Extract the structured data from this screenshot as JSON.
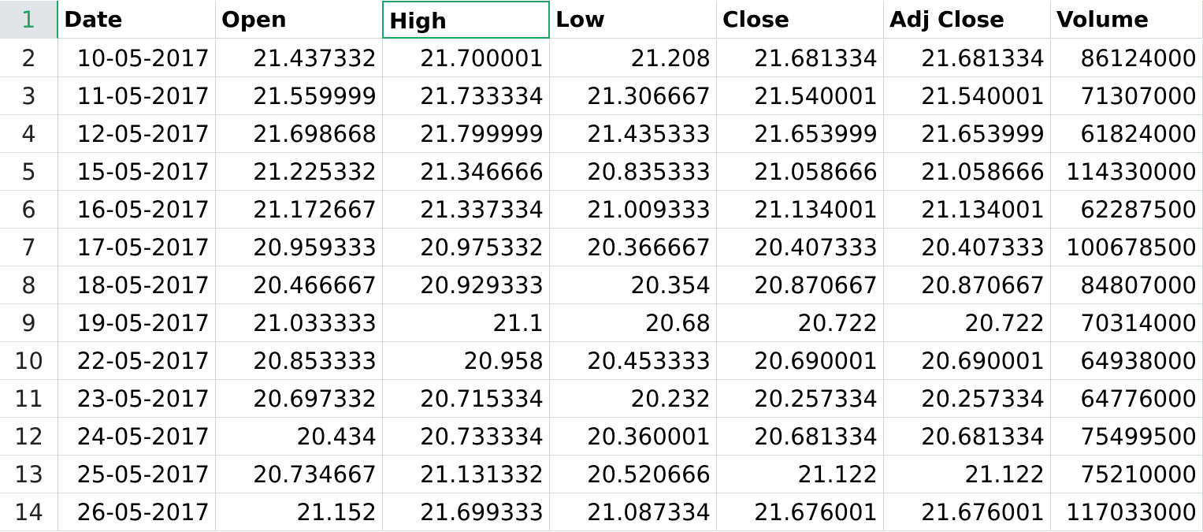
{
  "sheet": {
    "active_row": "1",
    "selected_cell": "High",
    "accent_color": "#21a366",
    "headers": [
      "Date",
      "Open",
      "High",
      "Low",
      "Close",
      "Adj Close",
      "Volume"
    ],
    "rows": [
      {
        "num": "2",
        "cells": [
          "10-05-2017",
          "21.437332",
          "21.700001",
          "21.208",
          "21.681334",
          "21.681334",
          "86124000"
        ]
      },
      {
        "num": "3",
        "cells": [
          "11-05-2017",
          "21.559999",
          "21.733334",
          "21.306667",
          "21.540001",
          "21.540001",
          "71307000"
        ]
      },
      {
        "num": "4",
        "cells": [
          "12-05-2017",
          "21.698668",
          "21.799999",
          "21.435333",
          "21.653999",
          "21.653999",
          "61824000"
        ]
      },
      {
        "num": "5",
        "cells": [
          "15-05-2017",
          "21.225332",
          "21.346666",
          "20.835333",
          "21.058666",
          "21.058666",
          "114330000"
        ]
      },
      {
        "num": "6",
        "cells": [
          "16-05-2017",
          "21.172667",
          "21.337334",
          "21.009333",
          "21.134001",
          "21.134001",
          "62287500"
        ]
      },
      {
        "num": "7",
        "cells": [
          "17-05-2017",
          "20.959333",
          "20.975332",
          "20.366667",
          "20.407333",
          "20.407333",
          "100678500"
        ]
      },
      {
        "num": "8",
        "cells": [
          "18-05-2017",
          "20.466667",
          "20.929333",
          "20.354",
          "20.870667",
          "20.870667",
          "84807000"
        ]
      },
      {
        "num": "9",
        "cells": [
          "19-05-2017",
          "21.033333",
          "21.1",
          "20.68",
          "20.722",
          "20.722",
          "70314000"
        ]
      },
      {
        "num": "10",
        "cells": [
          "22-05-2017",
          "20.853333",
          "20.958",
          "20.453333",
          "20.690001",
          "20.690001",
          "64938000"
        ]
      },
      {
        "num": "11",
        "cells": [
          "23-05-2017",
          "20.697332",
          "20.715334",
          "20.232",
          "20.257334",
          "20.257334",
          "64776000"
        ]
      },
      {
        "num": "12",
        "cells": [
          "24-05-2017",
          "20.434",
          "20.733334",
          "20.360001",
          "20.681334",
          "20.681334",
          "75499500"
        ]
      },
      {
        "num": "13",
        "cells": [
          "25-05-2017",
          "20.734667",
          "21.131332",
          "20.520666",
          "21.122",
          "21.122",
          "75210000"
        ]
      },
      {
        "num": "14",
        "cells": [
          "26-05-2017",
          "21.152",
          "21.699333",
          "21.087334",
          "21.676001",
          "21.676001",
          "117033000"
        ]
      }
    ]
  }
}
